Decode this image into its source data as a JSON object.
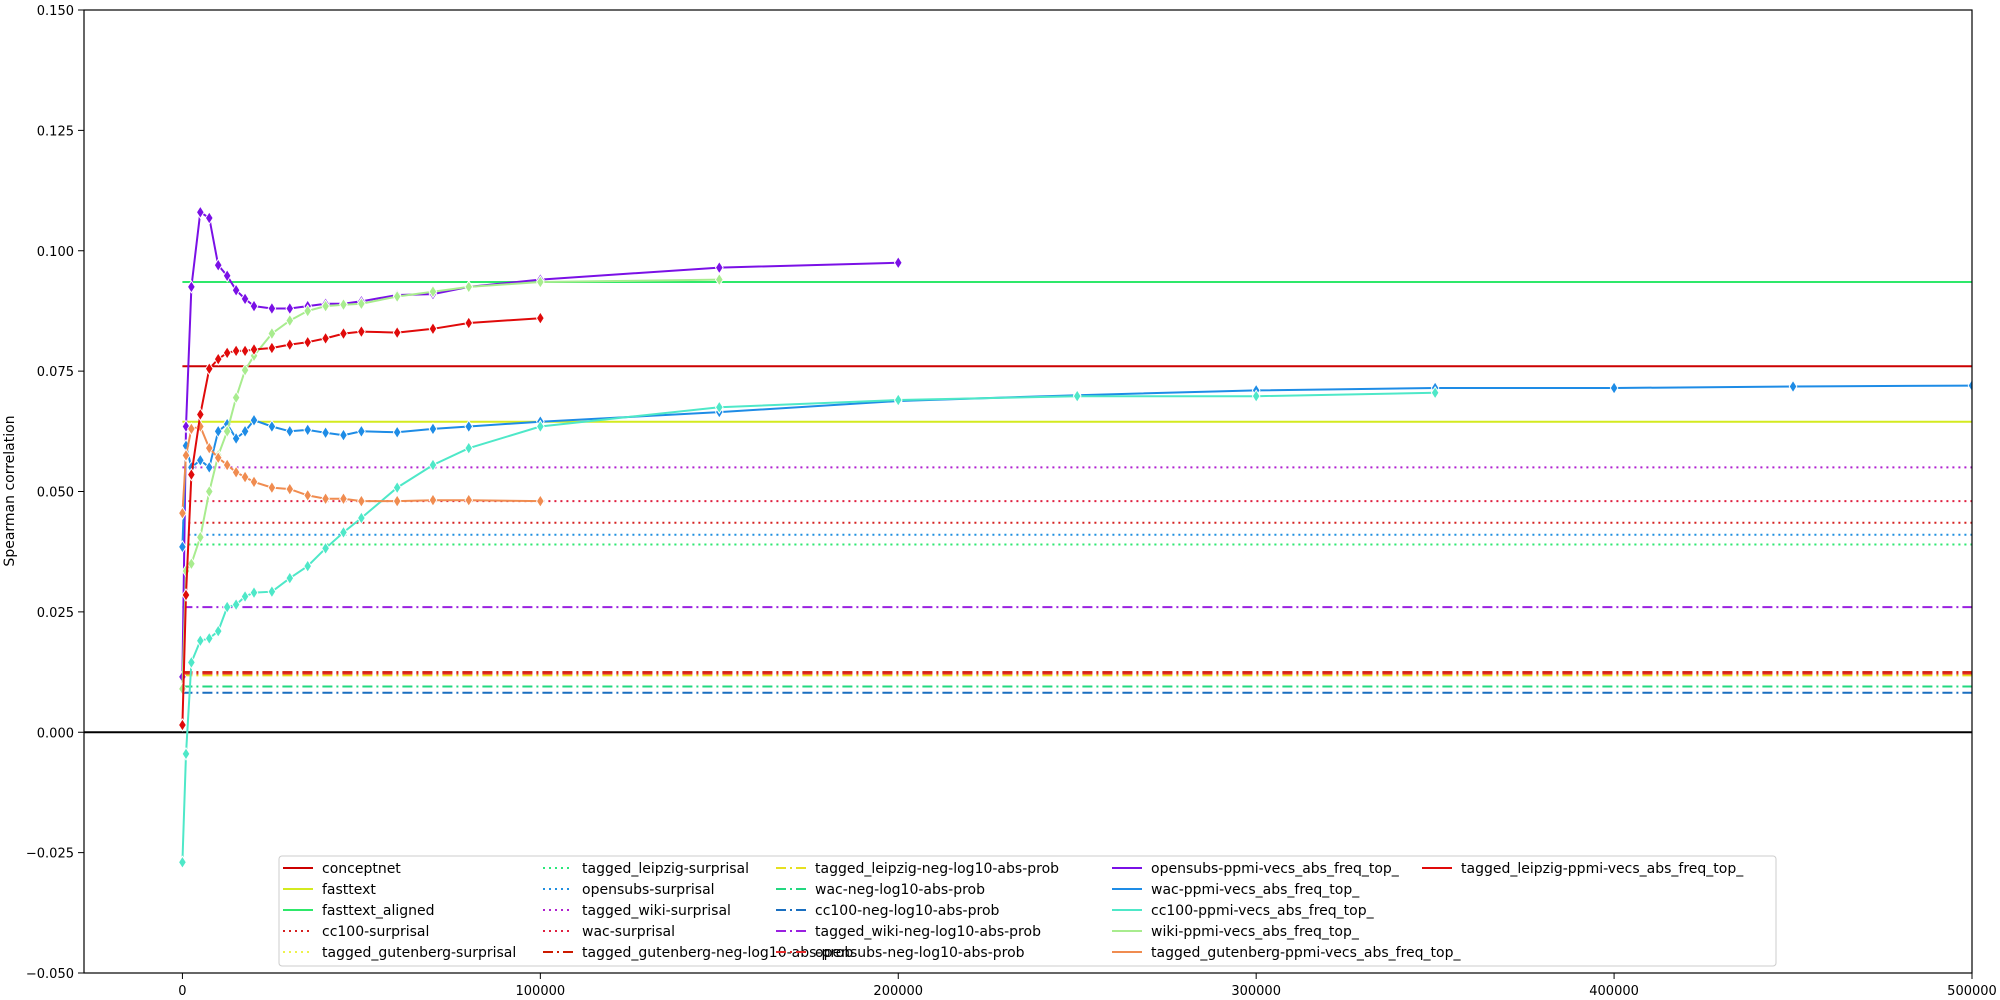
{
  "chart_data": {
    "type": "line",
    "title": "",
    "xlabel": "",
    "ylabel": "Spearman correlation",
    "xlim": [
      -27500,
      500000
    ],
    "ylim": [
      -0.05,
      0.15
    ],
    "x_ticks": [
      0,
      100000,
      200000,
      300000,
      400000,
      500000
    ],
    "x_tick_labels": [
      "0",
      "100000",
      "200000",
      "300000",
      "400000",
      "500000"
    ],
    "y_ticks": [
      -0.05,
      -0.025,
      0.0,
      0.025,
      0.05,
      0.075,
      0.1,
      0.125,
      0.15
    ],
    "y_tick_labels": [
      "−0.050",
      "−0.025",
      "0.000",
      "0.025",
      "0.050",
      "0.075",
      "0.100",
      "0.125",
      "0.150"
    ],
    "grid": false,
    "legend_position": "lower center",
    "zero_line": 0.0,
    "series": [
      {
        "name": "conceptnet",
        "color": "#cc0000",
        "dash": "solid",
        "markers": false,
        "x": [
          0,
          500000
        ],
        "y": [
          0.076,
          0.076
        ]
      },
      {
        "name": "fasttext",
        "color": "#d4ea1f",
        "dash": "solid",
        "markers": false,
        "x": [
          0,
          500000
        ],
        "y": [
          0.0645,
          0.0645
        ]
      },
      {
        "name": "fasttext_aligned",
        "color": "#2ee86a",
        "dash": "solid",
        "markers": false,
        "x": [
          0,
          500000
        ],
        "y": [
          0.0935,
          0.0935
        ]
      },
      {
        "name": "cc100-surprisal",
        "color": "#d62020",
        "dash": "dot",
        "markers": false,
        "x": [
          0,
          500000
        ],
        "y": [
          0.0435,
          0.0435
        ]
      },
      {
        "name": "tagged_gutenberg-surprisal",
        "color": "#eef24a",
        "dash": "dot",
        "markers": false,
        "x": [
          0,
          500000
        ],
        "y": [
          0.039,
          0.039
        ]
      },
      {
        "name": "tagged_leipzig-surprisal",
        "color": "#2ae87a",
        "dash": "dot",
        "markers": false,
        "x": [
          0,
          500000
        ],
        "y": [
          0.039,
          0.039
        ]
      },
      {
        "name": "opensubs-surprisal",
        "color": "#1f8fe0",
        "dash": "dot",
        "markers": false,
        "x": [
          0,
          500000
        ],
        "y": [
          0.041,
          0.041
        ]
      },
      {
        "name": "tagged_wiki-surprisal",
        "color": "#b020d0",
        "dash": "dot",
        "markers": false,
        "x": [
          0,
          500000
        ],
        "y": [
          0.055,
          0.055
        ]
      },
      {
        "name": "wac-surprisal",
        "color": "#e02040",
        "dash": "dot",
        "markers": false,
        "x": [
          0,
          500000
        ],
        "y": [
          0.048,
          0.048
        ]
      },
      {
        "name": "tagged_gutenberg-neg-log10-abs-prob",
        "color": "#cc1a00",
        "dash": "dashdot",
        "markers": false,
        "x": [
          0,
          500000
        ],
        "y": [
          0.0125,
          0.0125
        ]
      },
      {
        "name": "tagged_leipzig-neg-log10-abs-prob",
        "color": "#e6e020",
        "dash": "dashdot",
        "markers": false,
        "x": [
          0,
          500000
        ],
        "y": [
          0.0118,
          0.0118
        ]
      },
      {
        "name": "wac-neg-log10-abs-prob",
        "color": "#22d880",
        "dash": "dashdot",
        "markers": false,
        "x": [
          0,
          500000
        ],
        "y": [
          0.0095,
          0.0095
        ]
      },
      {
        "name": "cc100-neg-log10-abs-prob",
        "color": "#1a6fc0",
        "dash": "dashdot",
        "markers": false,
        "x": [
          0,
          500000
        ],
        "y": [
          0.0082,
          0.0082
        ]
      },
      {
        "name": "tagged_wiki-neg-log10-abs-prob",
        "color": "#9a20e0",
        "dash": "dashdot",
        "markers": false,
        "x": [
          0,
          500000
        ],
        "y": [
          0.026,
          0.026
        ]
      },
      {
        "name": "opensubs-neg-log10-abs-prob",
        "color": "#e62a2a",
        "dash": "dashdot",
        "markers": false,
        "x": [
          0,
          500000
        ],
        "y": [
          0.0122,
          0.0122
        ]
      },
      {
        "name": "opensubs-ppmi-vecs_abs_freq_top_",
        "color": "#7a10e6",
        "dash": "solid",
        "markers": true,
        "x": [
          0,
          1000,
          2500,
          5000,
          7500,
          10000,
          12500,
          15000,
          17500,
          20000,
          25000,
          30000,
          35000,
          40000,
          45000,
          50000,
          60000,
          70000,
          80000,
          100000,
          150000,
          200000
        ],
        "y": [
          0.0115,
          0.0635,
          0.0925,
          0.108,
          0.1068,
          0.097,
          0.0948,
          0.0918,
          0.09,
          0.0885,
          0.088,
          0.088,
          0.0885,
          0.089,
          0.089,
          0.0895,
          0.0908,
          0.091,
          0.0925,
          0.094,
          0.0965,
          0.0975
        ]
      },
      {
        "name": "wac-ppmi-vecs_abs_freq_top_",
        "color": "#1e8ce6",
        "dash": "solid",
        "markers": true,
        "x": [
          0,
          1000,
          2500,
          5000,
          7500,
          10000,
          12500,
          15000,
          17500,
          20000,
          25000,
          30000,
          35000,
          40000,
          45000,
          50000,
          60000,
          70000,
          80000,
          100000,
          150000,
          200000,
          250000,
          300000,
          350000,
          400000,
          450000,
          500000
        ],
        "y": [
          0.0385,
          0.0595,
          0.055,
          0.0565,
          0.055,
          0.0625,
          0.064,
          0.061,
          0.0625,
          0.0648,
          0.0635,
          0.0625,
          0.0628,
          0.0622,
          0.0617,
          0.0625,
          0.0623,
          0.063,
          0.0635,
          0.0645,
          0.0665,
          0.0688,
          0.07,
          0.071,
          0.0715,
          0.0715,
          0.0718,
          0.072
        ]
      },
      {
        "name": "cc100-ppmi-vecs_abs_freq_top_",
        "color": "#4ee8c8",
        "dash": "solid",
        "markers": true,
        "x": [
          0,
          1000,
          2500,
          5000,
          7500,
          10000,
          12500,
          15000,
          17500,
          20000,
          25000,
          30000,
          35000,
          40000,
          45000,
          50000,
          60000,
          70000,
          80000,
          100000,
          150000,
          200000,
          250000,
          300000,
          350000
        ],
        "y": [
          -0.027,
          -0.0045,
          0.0145,
          0.019,
          0.0195,
          0.021,
          0.026,
          0.0265,
          0.0282,
          0.029,
          0.0292,
          0.032,
          0.0345,
          0.0382,
          0.0415,
          0.0445,
          0.0508,
          0.0555,
          0.059,
          0.0635,
          0.0675,
          0.069,
          0.0698,
          0.0698,
          0.0705
        ]
      },
      {
        "name": "wiki-ppmi-vecs_abs_freq_top_",
        "color": "#a8ec8e",
        "dash": "solid",
        "markers": true,
        "x": [
          0,
          1000,
          2500,
          5000,
          7500,
          10000,
          12500,
          15000,
          17500,
          20000,
          25000,
          30000,
          35000,
          40000,
          45000,
          50000,
          60000,
          70000,
          80000,
          100000,
          150000
        ],
        "y": [
          0.009,
          0.0335,
          0.035,
          0.0405,
          0.05,
          0.0575,
          0.0625,
          0.0695,
          0.0752,
          0.0782,
          0.0828,
          0.0855,
          0.0875,
          0.0885,
          0.0888,
          0.089,
          0.0905,
          0.0915,
          0.0925,
          0.0935,
          0.094
        ]
      },
      {
        "name": "tagged_gutenberg-ppmi-vecs_abs_freq_top_",
        "color": "#f08c50",
        "dash": "solid",
        "markers": true,
        "x": [
          0,
          1000,
          2500,
          5000,
          7500,
          10000,
          12500,
          15000,
          17500,
          20000,
          25000,
          30000,
          35000,
          40000,
          45000,
          50000,
          60000,
          70000,
          80000,
          100000
        ],
        "y": [
          0.0455,
          0.0575,
          0.063,
          0.0635,
          0.059,
          0.057,
          0.0555,
          0.054,
          0.053,
          0.052,
          0.0508,
          0.0505,
          0.0492,
          0.0485,
          0.0485,
          0.048,
          0.048,
          0.0482,
          0.0482,
          0.048
        ]
      },
      {
        "name": "tagged_leipzig-ppmi-vecs_abs_freq_top_",
        "color": "#e00a0a",
        "dash": "solid",
        "markers": true,
        "x": [
          0,
          1000,
          2500,
          5000,
          7500,
          10000,
          12500,
          15000,
          17500,
          20000,
          25000,
          30000,
          35000,
          40000,
          45000,
          50000,
          60000,
          70000,
          80000,
          100000
        ],
        "y": [
          0.0015,
          0.0285,
          0.0535,
          0.066,
          0.0755,
          0.0775,
          0.0788,
          0.0792,
          0.0792,
          0.0795,
          0.0798,
          0.0805,
          0.081,
          0.0818,
          0.0828,
          0.0832,
          0.083,
          0.0838,
          0.085,
          0.086
        ]
      }
    ]
  }
}
